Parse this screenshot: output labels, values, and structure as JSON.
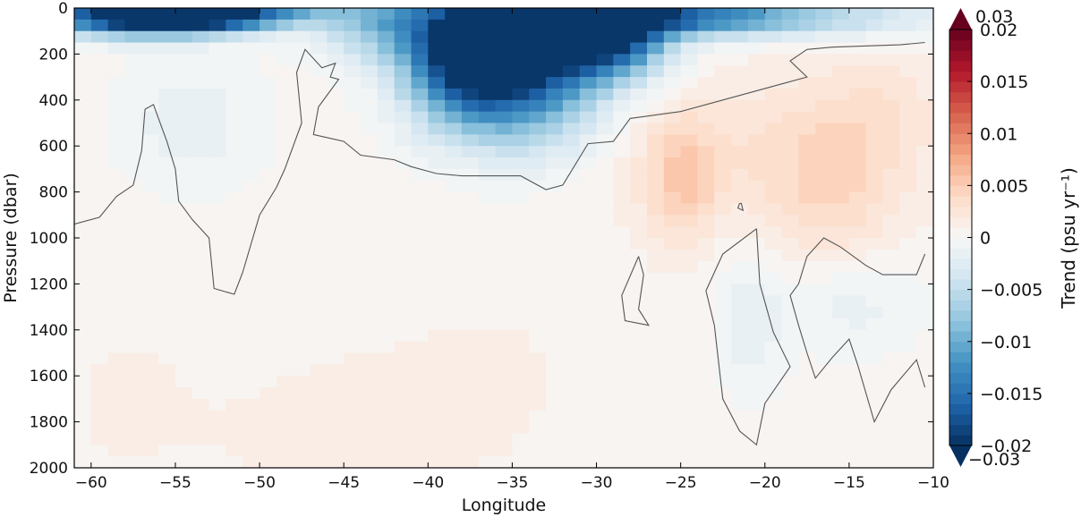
{
  "chart_data": {
    "type": "heatmap",
    "title": "",
    "xlabel": "Longitude",
    "ylabel": "Pressure (dbar)",
    "xlim": [
      -61,
      -10
    ],
    "ylim": [
      2000,
      0
    ],
    "x_ticks": [
      -60,
      -55,
      -50,
      -45,
      -40,
      -35,
      -30,
      -25,
      -20,
      -15,
      -10
    ],
    "x_tick_labels": [
      "−60",
      "−55",
      "−50",
      "−45",
      "−40",
      "−35",
      "−30",
      "−25",
      "−20",
      "−15",
      "−10"
    ],
    "y_ticks": [
      0,
      200,
      400,
      600,
      800,
      1000,
      1200,
      1400,
      1600,
      1800,
      2000
    ],
    "y_tick_labels": [
      "0",
      "200",
      "400",
      "600",
      "800",
      "1000",
      "1200",
      "1400",
      "1600",
      "1800",
      "2000"
    ],
    "grid": false,
    "colorbar": {
      "label": "Trend (psu yr⁻¹)",
      "range": [
        -0.02,
        0.02
      ],
      "extend_min": -0.03,
      "extend_max": 0.03,
      "ticks": [
        0.02,
        0.015,
        0.01,
        0.005,
        0,
        -0.005,
        -0.01,
        -0.015,
        -0.02
      ],
      "tick_labels": [
        "0.02",
        "0.015",
        "0.01",
        "0.005",
        "0",
        "−0.005",
        "−0.01",
        "−0.015",
        "−0.02"
      ],
      "extend_max_label": "0.03",
      "extend_min_label": "−0.03",
      "colormap": "RdBu_r",
      "levels": 40
    },
    "x": [
      -60.5,
      -59.5,
      -58.5,
      -57.5,
      -56.5,
      -55.5,
      -54.5,
      -53.5,
      -52.5,
      -51.5,
      -50.5,
      -49.5,
      -48.5,
      -47.5,
      -46.5,
      -45.5,
      -44.5,
      -43.5,
      -42.5,
      -41.5,
      -40.5,
      -39.5,
      -38.5,
      -37.5,
      -36.5,
      -35.5,
      -34.5,
      -33.5,
      -32.5,
      -31.5,
      -30.5,
      -29.5,
      -28.5,
      -27.5,
      -26.5,
      -25.5,
      -24.5,
      -23.5,
      -22.5,
      -21.5,
      -20.5,
      -19.5,
      -18.5,
      -17.5,
      -16.5,
      -15.5,
      -14.5,
      -13.5,
      -12.5,
      -11.5,
      -10.5
    ],
    "y": [
      25,
      75,
      125,
      175,
      225,
      275,
      325,
      375,
      425,
      475,
      525,
      575,
      625,
      675,
      725,
      775,
      825,
      875,
      925,
      975,
      1025,
      1075,
      1125,
      1175,
      1225,
      1275,
      1325,
      1375,
      1425,
      1475,
      1525,
      1575,
      1625,
      1675,
      1725,
      1775,
      1825,
      1875,
      1925,
      1975
    ],
    "trend_features": [
      {
        "x": -57,
        "y": 30,
        "sx": 4,
        "sy": 60,
        "v": -0.024
      },
      {
        "x": -53,
        "y": 30,
        "sx": 3,
        "sy": 50,
        "v": -0.012
      },
      {
        "x": -49,
        "y": 20,
        "sx": 3,
        "sy": 40,
        "v": -0.006
      },
      {
        "x": -43,
        "y": 50,
        "sx": 2.5,
        "sy": 120,
        "v": -0.008
      },
      {
        "x": -38,
        "y": 180,
        "sx": 2.5,
        "sy": 210,
        "v": -0.019
      },
      {
        "x": -34,
        "y": 230,
        "sx": 3,
        "sy": 230,
        "v": -0.017
      },
      {
        "x": -29.5,
        "y": 100,
        "sx": 2.5,
        "sy": 130,
        "v": -0.022
      },
      {
        "x": -26,
        "y": 40,
        "sx": 3,
        "sy": 60,
        "v": -0.012
      },
      {
        "x": -21,
        "y": 40,
        "sx": 3,
        "sy": 60,
        "v": -0.008
      },
      {
        "x": -15,
        "y": 40,
        "sx": 4,
        "sy": 60,
        "v": -0.005
      },
      {
        "x": -54,
        "y": 500,
        "sx": 3,
        "sy": 200,
        "v": -0.002
      },
      {
        "x": -25,
        "y": 750,
        "sx": 1.5,
        "sy": 180,
        "v": 0.004
      },
      {
        "x": -16,
        "y": 800,
        "sx": 3,
        "sy": 250,
        "v": 0.003
      },
      {
        "x": -22,
        "y": 600,
        "sx": 5,
        "sy": 250,
        "v": 0.002
      },
      {
        "x": -13,
        "y": 450,
        "sx": 3,
        "sy": 200,
        "v": 0.002
      },
      {
        "x": -21,
        "y": 1350,
        "sx": 1.5,
        "sy": 250,
        "v": -0.002
      },
      {
        "x": -15,
        "y": 1280,
        "sx": 3,
        "sy": 150,
        "v": -0.002
      },
      {
        "x": -45,
        "y": 1850,
        "sx": 6,
        "sy": 200,
        "v": 0.001
      },
      {
        "x": -58,
        "y": 1700,
        "sx": 3,
        "sy": 250,
        "v": 0.0008
      },
      {
        "x": -36,
        "y": 1500,
        "sx": 8,
        "sy": 400,
        "v": 0.0006
      }
    ],
    "trend_background": 0.0004,
    "zero_contours": [
      [
        [
          -61,
          940
        ],
        [
          -59.5,
          910
        ],
        [
          -58.5,
          820
        ],
        [
          -57.5,
          770
        ],
        [
          -57,
          620
        ],
        [
          -56.8,
          440
        ],
        [
          -56.3,
          420
        ],
        [
          -56,
          480
        ],
        [
          -55.5,
          580
        ],
        [
          -55,
          700
        ],
        [
          -54.8,
          840
        ],
        [
          -54,
          920
        ],
        [
          -53,
          1000
        ],
        [
          -52.7,
          1220
        ],
        [
          -51.5,
          1245
        ],
        [
          -51,
          1150
        ],
        [
          -50,
          900
        ],
        [
          -49,
          780
        ],
        [
          -48.5,
          700
        ],
        [
          -47.5,
          500
        ],
        [
          -47.8,
          280
        ],
        [
          -47.3,
          180
        ],
        [
          -46.3,
          260
        ],
        [
          -45.5,
          240
        ],
        [
          -45.8,
          300
        ],
        [
          -45.3,
          310
        ],
        [
          -46.5,
          430
        ],
        [
          -46.8,
          550
        ],
        [
          -45,
          580
        ],
        [
          -44,
          640
        ],
        [
          -42,
          660
        ],
        [
          -41,
          690
        ],
        [
          -39.5,
          720
        ],
        [
          -38,
          730
        ],
        [
          -34.5,
          730
        ],
        [
          -33,
          790
        ],
        [
          -32,
          770
        ],
        [
          -30.5,
          590
        ],
        [
          -29,
          580
        ],
        [
          -28,
          480
        ],
        [
          -25,
          450
        ],
        [
          -21.5,
          380
        ],
        [
          -19,
          330
        ],
        [
          -17.5,
          300
        ],
        [
          -18.5,
          230
        ],
        [
          -17.5,
          180
        ],
        [
          -16,
          170
        ],
        [
          -12,
          160
        ],
        [
          -10.5,
          150
        ]
      ],
      [
        [
          -27.5,
          1080
        ],
        [
          -28.5,
          1250
        ],
        [
          -28.3,
          1360
        ],
        [
          -26.9,
          1380
        ],
        [
          -27.5,
          1310
        ],
        [
          -27.2,
          1160
        ],
        [
          -27.5,
          1080
        ]
      ],
      [
        [
          -21.5,
          850
        ],
        [
          -21.6,
          870
        ],
        [
          -21.3,
          880
        ],
        [
          -21.4,
          850
        ],
        [
          -21.5,
          850
        ]
      ],
      [
        [
          -20.5,
          960
        ],
        [
          -22.5,
          1070
        ],
        [
          -23.5,
          1230
        ],
        [
          -23,
          1380
        ],
        [
          -22.5,
          1700
        ],
        [
          -21.5,
          1840
        ],
        [
          -20.5,
          1900
        ],
        [
          -20,
          1720
        ],
        [
          -18.5,
          1560
        ],
        [
          -19.5,
          1410
        ],
        [
          -20.3,
          1200
        ],
        [
          -20.5,
          960
        ]
      ],
      [
        [
          -10.5,
          1070
        ],
        [
          -11,
          1160
        ],
        [
          -13,
          1160
        ],
        [
          -14,
          1120
        ],
        [
          -15.5,
          1040
        ],
        [
          -16.5,
          1000
        ],
        [
          -17.5,
          1080
        ],
        [
          -18,
          1200
        ],
        [
          -18.5,
          1250
        ],
        [
          -18,
          1380
        ],
        [
          -17.5,
          1500
        ],
        [
          -17,
          1610
        ],
        [
          -16,
          1520
        ],
        [
          -15,
          1440
        ],
        [
          -14.5,
          1550
        ],
        [
          -13.5,
          1800
        ],
        [
          -12.5,
          1660
        ],
        [
          -11,
          1530
        ],
        [
          -10.5,
          1650
        ]
      ]
    ]
  }
}
